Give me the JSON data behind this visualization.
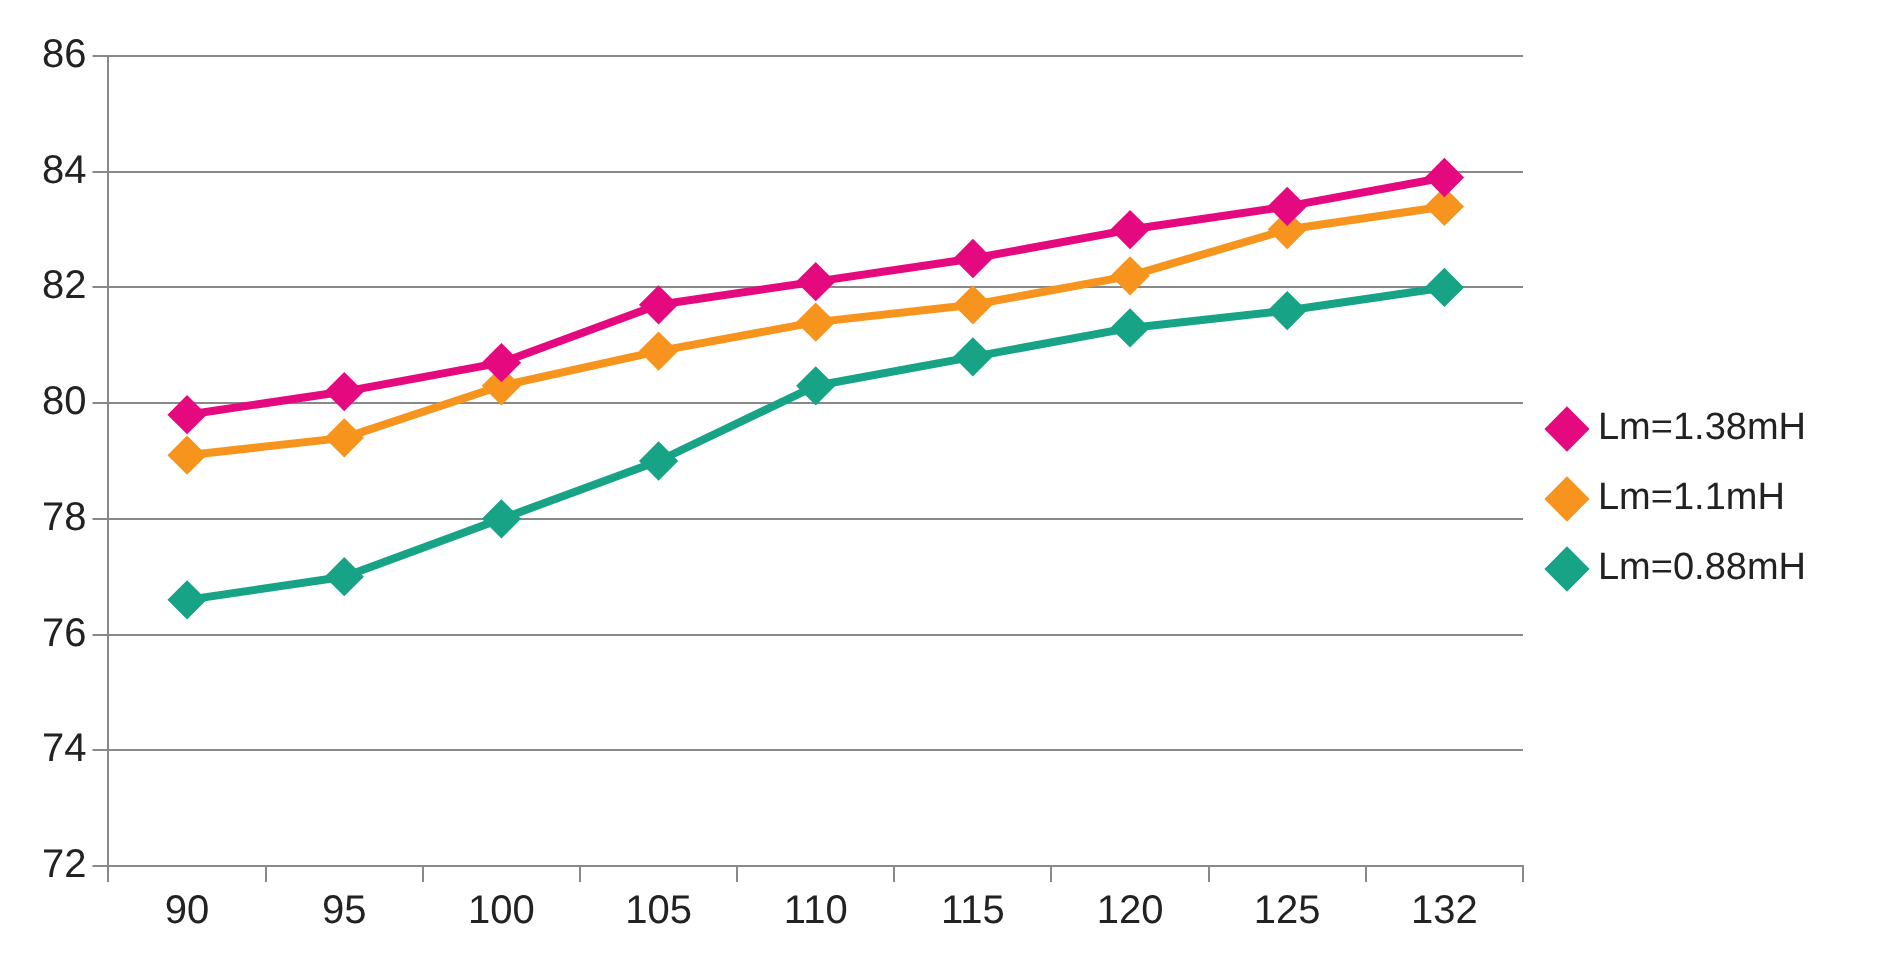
{
  "chart_data": {
    "type": "line",
    "categories": [
      "90",
      "95",
      "100",
      "105",
      "110",
      "115",
      "120",
      "125",
      "132"
    ],
    "series": [
      {
        "name": "Lm=1.38mH",
        "color": "#e5097f",
        "values": [
          79.8,
          80.2,
          80.7,
          81.7,
          82.1,
          82.5,
          83.0,
          83.4,
          83.9
        ]
      },
      {
        "name": "Lm=1.1mH",
        "color": "#f7941d",
        "values": [
          79.1,
          79.4,
          80.3,
          80.9,
          81.4,
          81.7,
          82.2,
          83.0,
          83.4
        ]
      },
      {
        "name": "Lm=0.88mH",
        "color": "#17a386",
        "values": [
          76.6,
          77.0,
          78.0,
          79.0,
          80.3,
          80.8,
          81.3,
          81.6,
          82.0
        ]
      }
    ],
    "ylim": [
      72,
      86
    ],
    "yticks": [
      72,
      74,
      76,
      78,
      80,
      82,
      84,
      86
    ],
    "grid": "y",
    "legend": "right",
    "marker": "diamond",
    "line_style": "solid"
  }
}
